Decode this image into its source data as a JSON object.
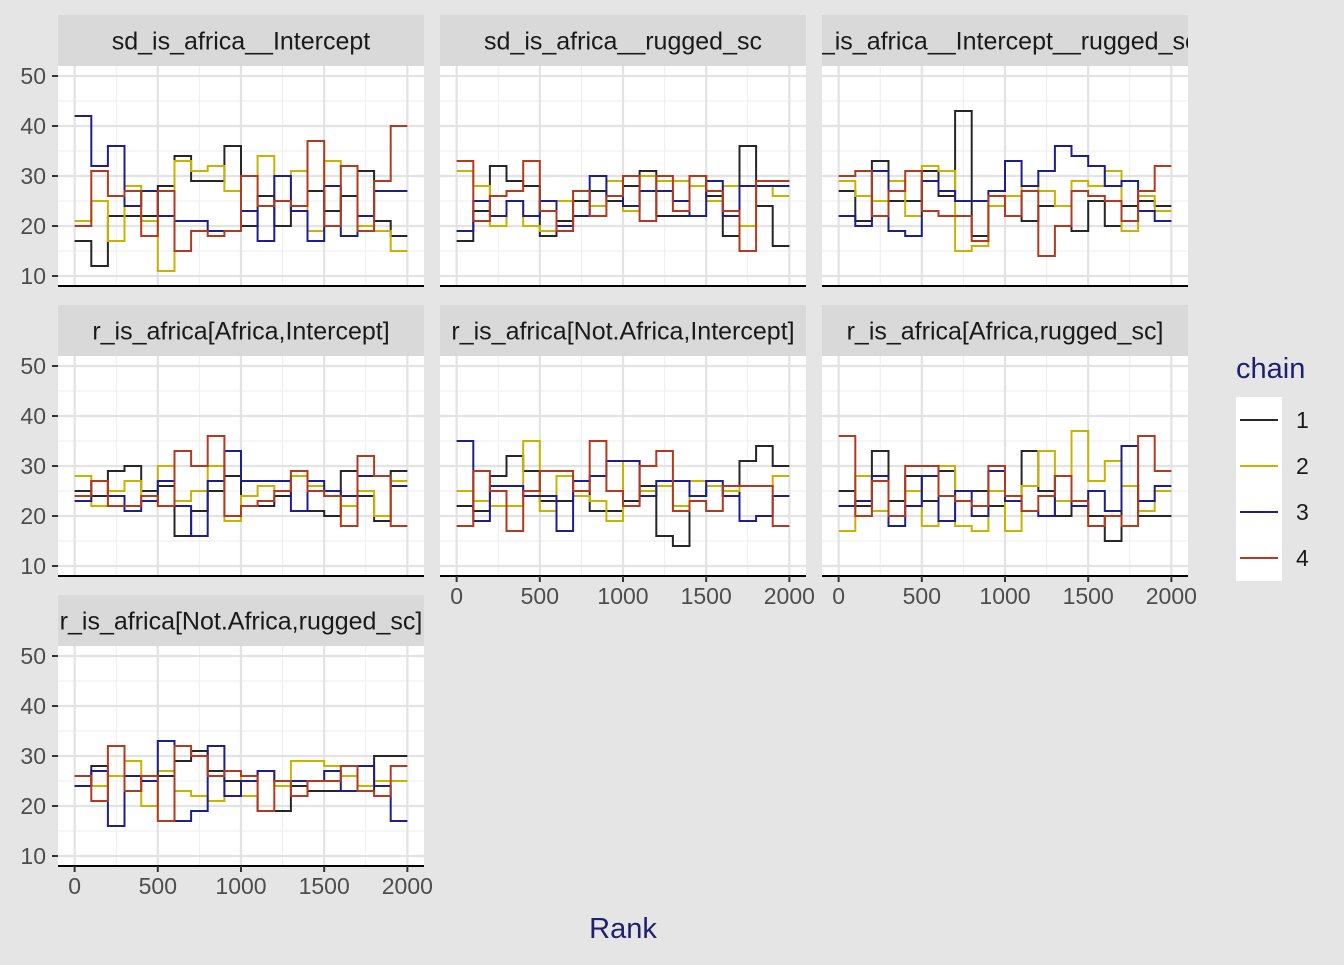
{
  "chart_data": {
    "type": "line",
    "subtype": "rank-histogram-step",
    "xlabel": "Rank",
    "ylabel": "",
    "xlim": [
      -100,
      2100
    ],
    "ylim": [
      8,
      52
    ],
    "x_ticks": [
      0,
      500,
      1000,
      1500,
      2000
    ],
    "x_tick_labels": [
      "0",
      "500",
      "1000",
      "1500",
      "2000"
    ],
    "y_ticks": [
      10,
      20,
      30,
      40,
      50
    ],
    "y_tick_labels": [
      "10",
      "20",
      "30",
      "40",
      "50"
    ],
    "x_breaks": [
      0,
      100,
      200,
      300,
      400,
      500,
      600,
      700,
      800,
      900,
      1000,
      1100,
      1200,
      1300,
      1400,
      1500,
      1600,
      1700,
      1800,
      1900,
      2000
    ],
    "legend": {
      "title": "chain",
      "position": "right",
      "entries": [
        {
          "label": "1",
          "color": "#262626"
        },
        {
          "label": "2",
          "color": "#c8b400"
        },
        {
          "label": "3",
          "color": "#1f1f8c"
        },
        {
          "label": "4",
          "color": "#b23a1e"
        }
      ]
    },
    "panels": [
      {
        "title": "sd_is_africa__Intercept",
        "series": [
          {
            "name": "1",
            "values": [
              17,
              12,
              22,
              22,
              22,
              28,
              34,
              29,
              29,
              36,
              20,
              26,
              20,
              24,
              27,
              23,
              26,
              31,
              21,
              18
            ]
          },
          {
            "name": "2",
            "values": [
              21,
              25,
              17,
              28,
              21,
              11,
              33,
              31,
              32,
              27,
              30,
              34,
              25,
              31,
              19,
              33,
              32,
              20,
              19,
              15
            ]
          },
          {
            "name": "3",
            "values": [
              42,
              32,
              36,
              24,
              27,
              22,
              21,
              21,
              19,
              19,
              23,
              17,
              30,
              23,
              17,
              28,
              18,
              22,
              27,
              27
            ]
          },
          {
            "name": "4",
            "values": [
              20,
              31,
              26,
              27,
              18,
              27,
              15,
              19,
              18,
              19,
              30,
              24,
              25,
              24,
              37,
              20,
              32,
              19,
              29,
              40
            ]
          }
        ]
      },
      {
        "title": "sd_is_africa__rugged_sc",
        "series": [
          {
            "name": "1",
            "values": [
              17,
              23,
              32,
              29,
              28,
              18,
              21,
              25,
              27,
              25,
              28,
              31,
              22,
              22,
              30,
              26,
              18,
              36,
              24,
              16
            ]
          },
          {
            "name": "2",
            "values": [
              31,
              28,
              20,
              25,
              20,
              19,
              25,
              27,
              24,
              29,
              23,
              30,
              29,
              29,
              28,
              25,
              28,
              20,
              28,
              26
            ]
          },
          {
            "name": "3",
            "values": [
              19,
              25,
              22,
              25,
              22,
              25,
              20,
              22,
              30,
              26,
              24,
              27,
              27,
              25,
              22,
              29,
              22,
              28,
              28,
              28
            ]
          },
          {
            "name": "4",
            "values": [
              33,
              21,
              26,
              27,
              33,
              23,
              19,
              27,
              22,
              26,
              30,
              21,
              30,
              23,
              30,
              27,
              23,
              15,
              29,
              29
            ]
          }
        ]
      },
      {
        "title": "r_is_africa__Intercept__rugged_sc",
        "series": [
          {
            "name": "1",
            "values": [
              27,
              21,
              33,
              25,
              25,
              31,
              26,
              43,
              18,
              24,
              26,
              21,
              24,
              24,
              19,
              25,
              20,
              24,
              25,
              24
            ]
          },
          {
            "name": "2",
            "values": [
              29,
              26,
              25,
              29,
              22,
              32,
              31,
              15,
              16,
              24,
              26,
              28,
              27,
              24,
              29,
              28,
              31,
              19,
              26,
              23
            ]
          },
          {
            "name": "3",
            "values": [
              22,
              20,
              31,
              19,
              18,
              29,
              27,
              25,
              25,
              27,
              33,
              28,
              31,
              36,
              34,
              32,
              28,
              29,
              23,
              21
            ]
          },
          {
            "name": "4",
            "values": [
              30,
              31,
              22,
              27,
              31,
              23,
              22,
              22,
              17,
              26,
              22,
              27,
              14,
              20,
              27,
              26,
              25,
              21,
              27,
              32
            ]
          }
        ]
      },
      {
        "title": "r_is_africa[Africa,Intercept]",
        "series": [
          {
            "name": "1",
            "values": [
              25,
              24,
              29,
              30,
              25,
              26,
              16,
              21,
              25,
              28,
              22,
              22,
              24,
              28,
              21,
              20,
              29,
              24,
              19,
              29
            ]
          },
          {
            "name": "2",
            "values": [
              28,
              22,
              25,
              27,
              23,
              30,
              23,
              25,
              30,
              19,
              24,
              26,
              25,
              28,
              26,
              24,
              22,
              25,
              20,
              27
            ]
          },
          {
            "name": "3",
            "values": [
              23,
              27,
              24,
              21,
              23,
              27,
              22,
              16,
              27,
              33,
              27,
              27,
              27,
              21,
              27,
              25,
              24,
              28,
              28,
              26
            ]
          },
          {
            "name": "4",
            "values": [
              24,
              27,
              22,
              22,
              24,
              22,
              33,
              30,
              36,
              20,
              22,
              23,
              25,
              29,
              25,
              24,
              18,
              32,
              28,
              18
            ]
          }
        ]
      },
      {
        "title": "r_is_africa[Not.Africa,Intercept]",
        "series": [
          {
            "name": "1",
            "values": [
              22,
              21,
              28,
              32,
              29,
              23,
              23,
              27,
              21,
              21,
              23,
              26,
              16,
              14,
              24,
              26,
              24,
              31,
              34,
              30
            ]
          },
          {
            "name": "2",
            "values": [
              25,
              23,
              22,
              22,
              35,
              21,
              28,
              24,
              23,
              19,
              31,
              25,
              26,
              22,
              27,
              26,
              25,
              26,
              26,
              28
            ]
          },
          {
            "name": "3",
            "values": [
              35,
              19,
              26,
              26,
              24,
              24,
              17,
              27,
              28,
              31,
              31,
              24,
              27,
              27,
              24,
              27,
              24,
              19,
              20,
              24
            ]
          },
          {
            "name": "4",
            "values": [
              18,
              29,
              25,
              17,
              25,
              29,
              29,
              25,
              35,
              25,
              22,
              30,
              33,
              21,
              23,
              21,
              26,
              26,
              26,
              18
            ]
          }
        ]
      },
      {
        "title": "r_is_africa[Africa,rugged_sc]",
        "series": [
          {
            "name": "1",
            "values": [
              25,
              22,
              33,
              23,
              28,
              23,
              29,
              25,
              25,
              22,
              24,
              33,
              25,
              20,
              22,
              20,
              15,
              26,
              20,
              20
            ]
          },
          {
            "name": "2",
            "values": [
              17,
              28,
              21,
              20,
              25,
              18,
              30,
              18,
              17,
              25,
              17,
              26,
              33,
              23,
              37,
              27,
              31,
              26,
              21,
              25
            ]
          },
          {
            "name": "3",
            "values": [
              22,
              23,
              28,
              18,
              22,
              28,
              19,
              25,
              20,
              29,
              23,
              21,
              20,
              28,
              22,
              25,
              21,
              34,
              23,
              26
            ]
          },
          {
            "name": "4",
            "values": [
              36,
              20,
              27,
              20,
              30,
              30,
              24,
              23,
              22,
              30,
              24,
              21,
              24,
              28,
              23,
              18,
              20,
              18,
              36,
              29
            ]
          }
        ]
      },
      {
        "title": "r_is_africa[Not.Africa,rugged_sc]",
        "series": [
          {
            "name": "1",
            "values": [
              24,
              28,
              26,
              23,
              26,
              26,
              29,
              31,
              27,
              25,
              22,
              19,
              19,
              24,
              23,
              23,
              23,
              23,
              30,
              30
            ]
          },
          {
            "name": "2",
            "values": [
              26,
              24,
              26,
              29,
              20,
              27,
              23,
              22,
              21,
              27,
              22,
              27,
              24,
              29,
              29,
              28,
              26,
              24,
              25,
              25
            ]
          },
          {
            "name": "3",
            "values": [
              24,
              27,
              16,
              26,
              25,
              33,
              17,
              19,
              32,
              22,
              25,
              27,
              25,
              25,
              25,
              27,
              23,
              28,
              24,
              17
            ]
          },
          {
            "name": "4",
            "values": [
              26,
              21,
              32,
              23,
              26,
              17,
              32,
              30,
              26,
              27,
              26,
              19,
              25,
              22,
              25,
              25,
              28,
              23,
              22,
              28
            ]
          }
        ]
      }
    ]
  }
}
